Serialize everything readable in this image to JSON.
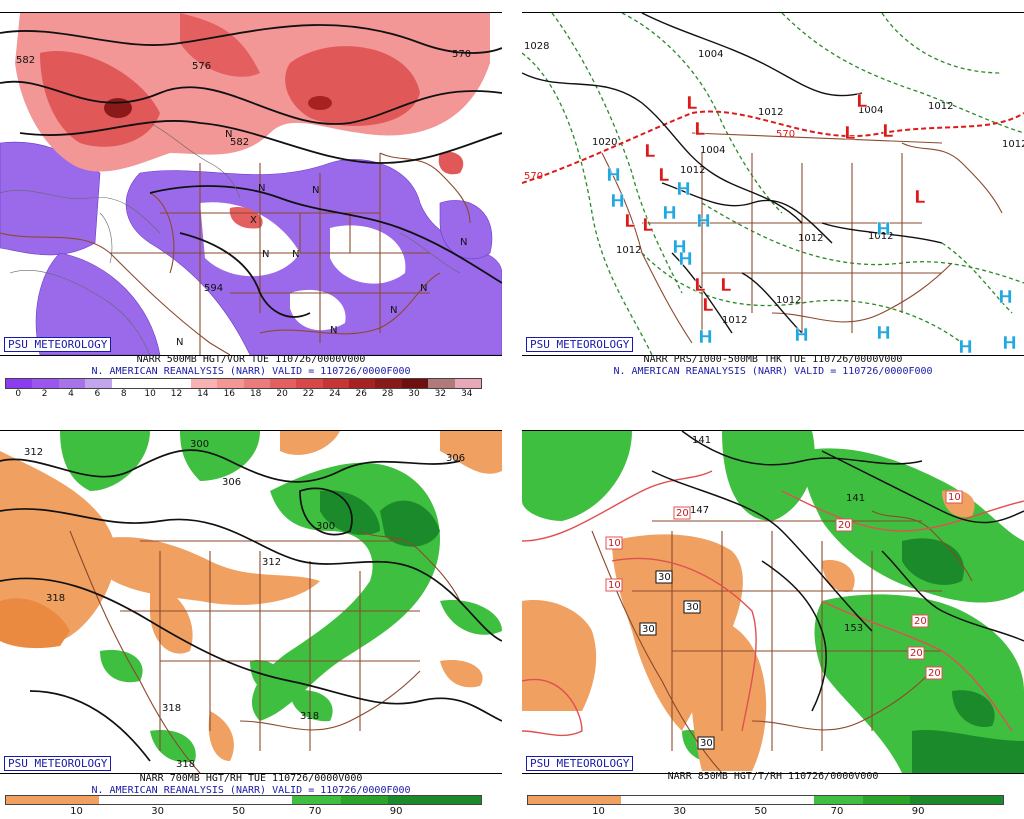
{
  "branding": "PSU METEOROLOGY",
  "panels": {
    "tl": {
      "title": "NARR 500MB HGT/VOR TUE 110726/0000V000",
      "subtitle": "N. AMERICAN REANALYSIS (NARR) VALID = 110726/0000F000",
      "colorbar_ticks": [
        "0",
        "2",
        "4",
        "6",
        "8",
        "10",
        "12",
        "14",
        "16",
        "18",
        "20",
        "22",
        "24",
        "26",
        "28",
        "30",
        "32",
        "34"
      ],
      "contour_labels": [
        "582",
        "576",
        "570",
        "582",
        "594"
      ],
      "vort_markers": [
        "N",
        "N",
        "N",
        "N",
        "X",
        "N",
        "N",
        "N",
        "N",
        "N",
        "N",
        "N"
      ]
    },
    "tr": {
      "title": "NARR PRS/1000-500MB THK TUE 110726/0000V000",
      "subtitle": "N. AMERICAN REANALYSIS (NARR) VALID = 110726/0000F000",
      "contour_labels": [
        "1028",
        "1004",
        "1012",
        "1004",
        "1012",
        "1020",
        "1012",
        "1004",
        "1012",
        "1012",
        "1012",
        "1012",
        "1012",
        "570",
        "570",
        "1012"
      ],
      "low_symbol": "L",
      "high_symbol": "H"
    },
    "bl": {
      "title": "NARR 700MB HGT/RH TUE 110726/0000V000",
      "subtitle": "N. AMERICAN REANALYSIS (NARR) VALID = 110726/0000F000",
      "colorbar_ticks": [
        "10",
        "30",
        "50",
        "70",
        "90"
      ],
      "contour_labels": [
        "312",
        "300",
        "306",
        "306",
        "300",
        "312",
        "318",
        "318",
        "318",
        "318"
      ]
    },
    "br": {
      "title": "NARR 850MB HGT/T/RH 110726/0000V000",
      "colorbar_ticks": [
        "10",
        "30",
        "50",
        "70",
        "90"
      ],
      "contour_labels": [
        "141",
        "147",
        "141",
        "153"
      ],
      "temp_labels": [
        "20",
        "10",
        "10",
        "20",
        "30",
        "30",
        "30",
        "10",
        "20",
        "20",
        "20",
        "30"
      ]
    }
  },
  "colors": {
    "vort_scale": [
      "#8a3cf0",
      "#9a56ee",
      "#a772ea",
      "#c3a4ef",
      "#ffffff",
      "#ffffff",
      "#ffffff",
      "#f7b3b3",
      "#f29696",
      "#ec7b7b",
      "#e46060",
      "#d84848",
      "#c83535",
      "#a82222",
      "#8a1a1a",
      "#6e1010",
      "#b07a7a",
      "#e8a8b8"
    ],
    "rh_dry": "#f0a060",
    "rh_moist": "#3fbf3f",
    "rh_very_moist": "#1a8a2a",
    "map_lines": "#8b4a2e",
    "low_red": "#dd1a1a",
    "high_blue": "#22a8e0",
    "title_blue": "#1a1aa8"
  }
}
